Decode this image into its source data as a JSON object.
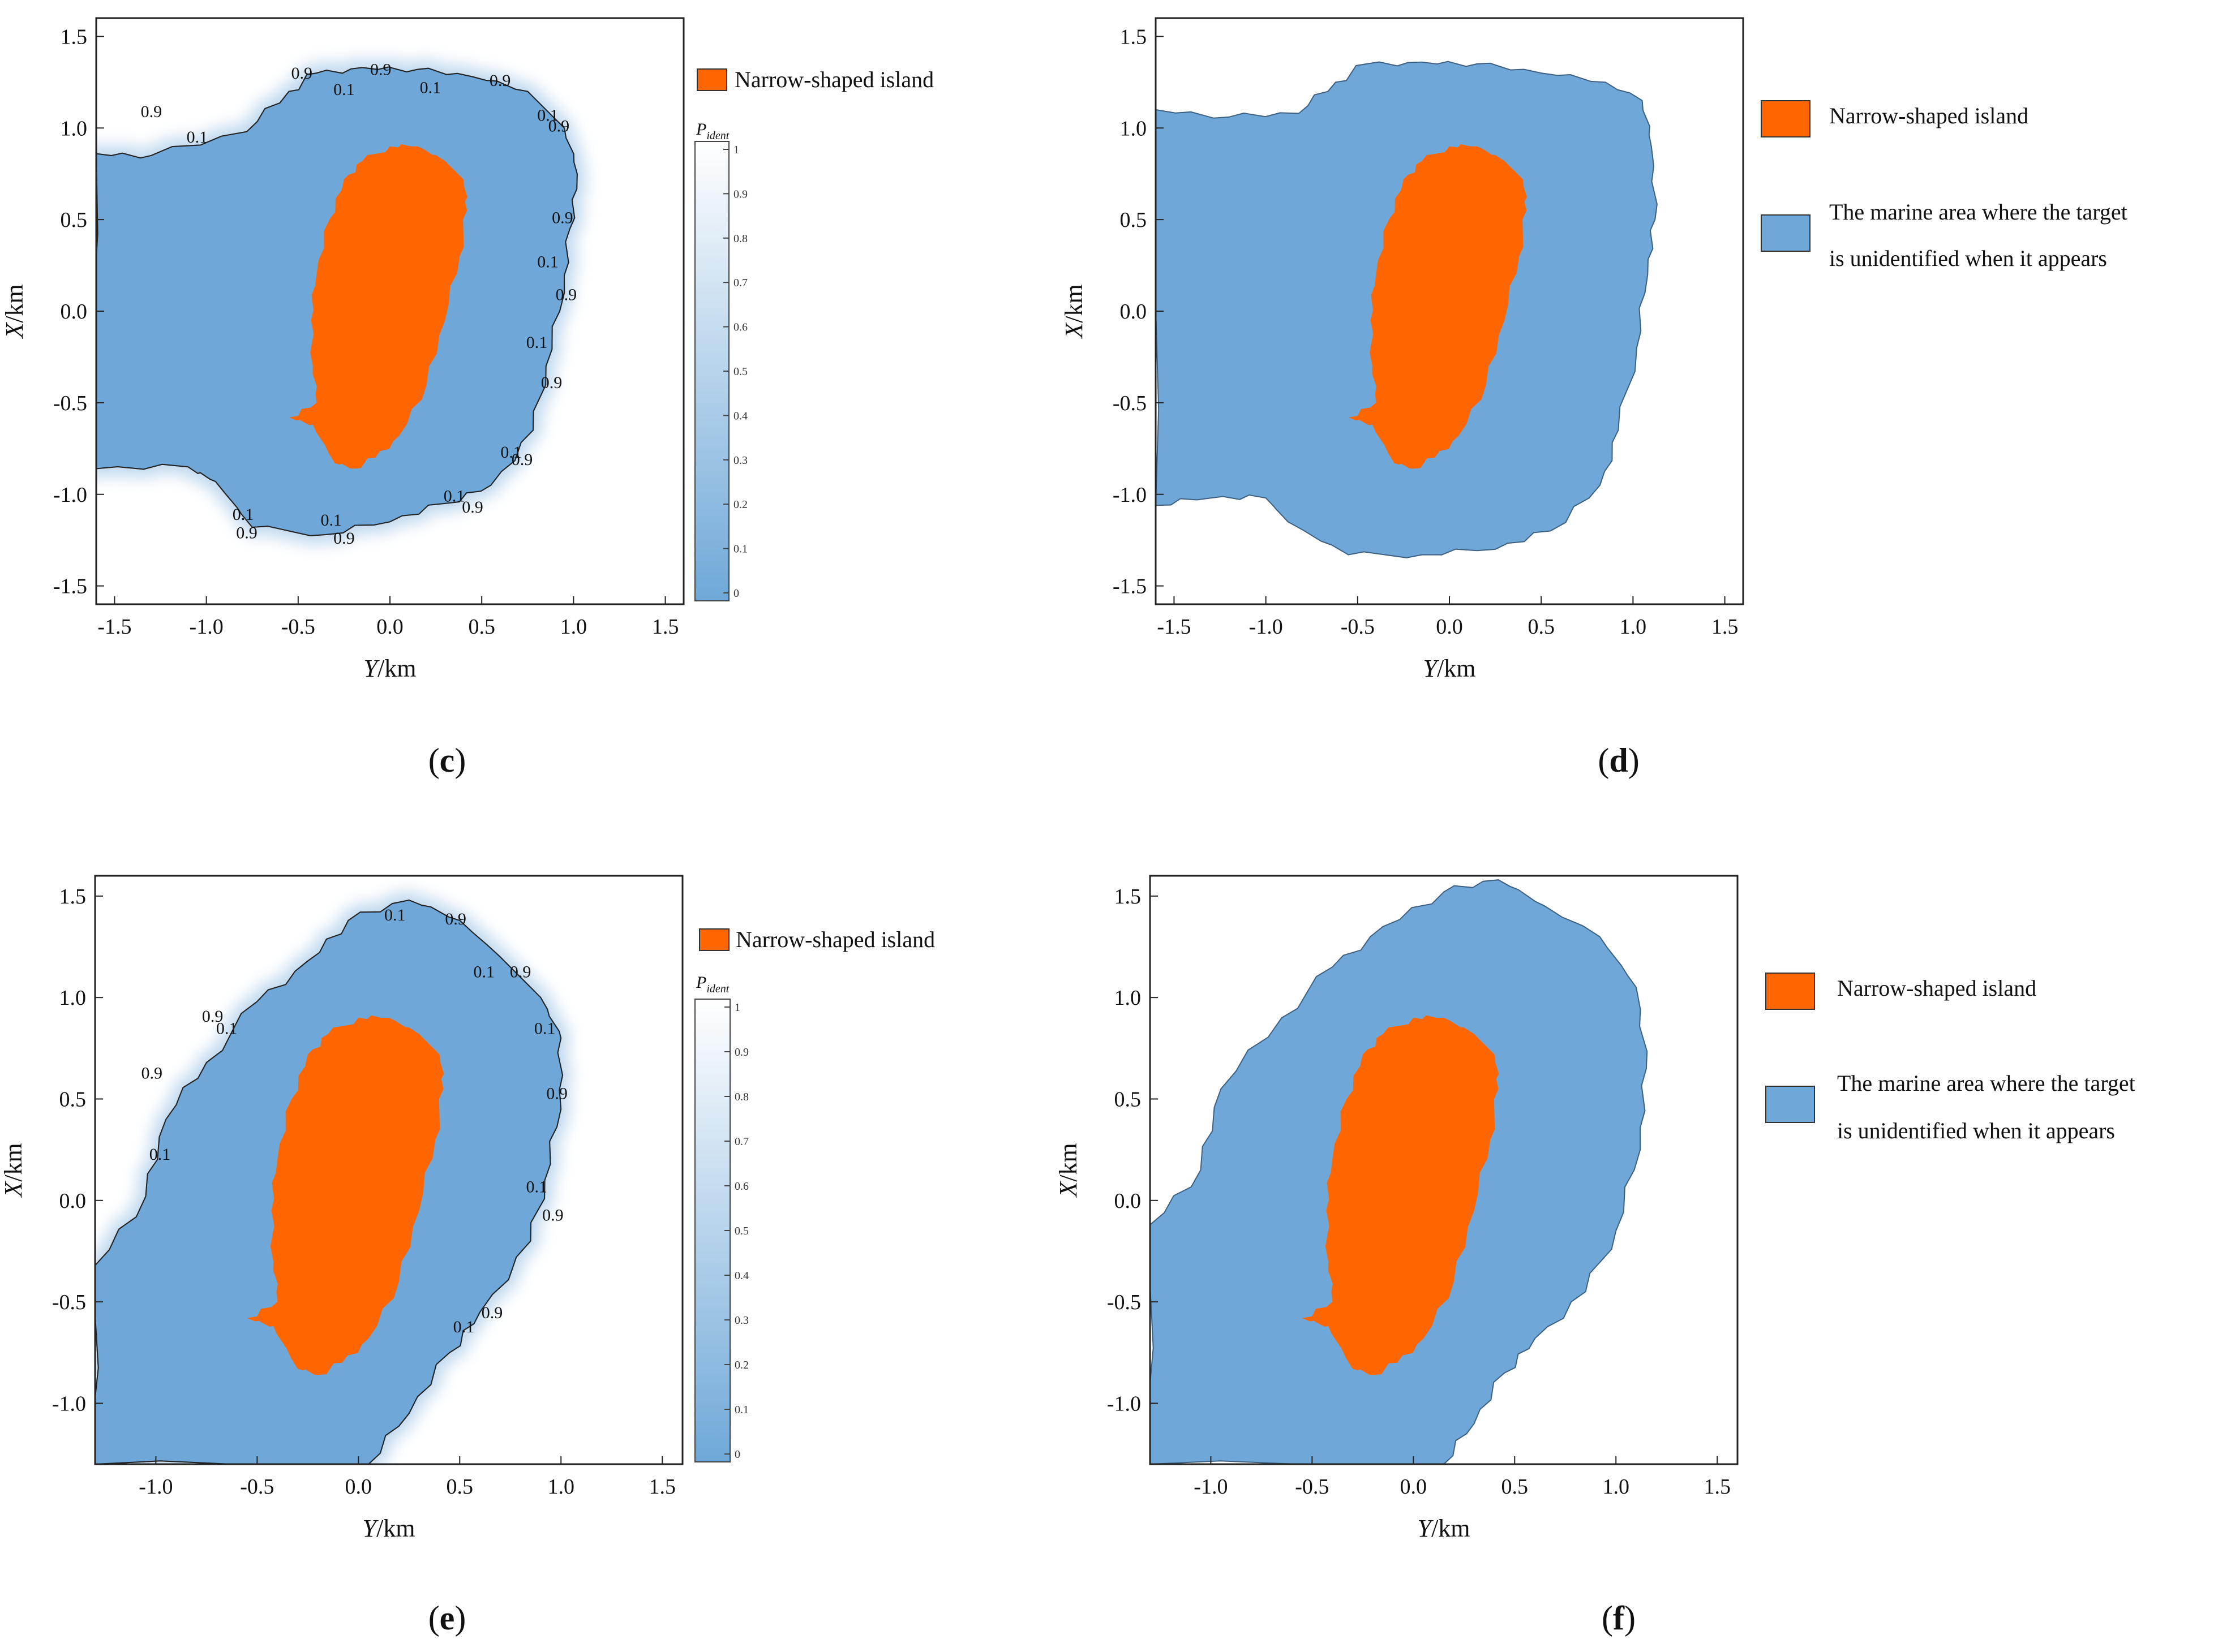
{
  "colors": {
    "island": "#FF6600",
    "marine": "#6FA8D8",
    "contour_line": "#222222",
    "frame": "#222222",
    "cbar_low": "#6FA8D8",
    "cbar_high": "#FFFFFF"
  },
  "chart_data": [
    {
      "id": "c",
      "type": "heatmap",
      "caption_letter": "c",
      "xlabel_italic": "Y",
      "xlabel_rest": "/km",
      "ylabel_italic": "X",
      "ylabel_rest": "/km",
      "xlim": [
        -1.6,
        1.6
      ],
      "ylim": [
        -1.6,
        1.6
      ],
      "xticks": [
        -1.5,
        -1.0,
        -0.5,
        0.0,
        0.5,
        1.0,
        1.5
      ],
      "xtick_labels": [
        "-1.5",
        "-1.0",
        "-0.5",
        "0.0",
        "0.5",
        "1.0",
        "1.5"
      ],
      "yticks": [
        -1.5,
        -1.0,
        -0.5,
        0.0,
        0.5,
        1.0,
        1.5
      ],
      "ytick_labels": [
        "-1.5",
        "-1.0",
        "-0.5",
        "0.0",
        "0.5",
        "1.0",
        "1.5"
      ],
      "legend": [
        "Narrow-shaped island"
      ],
      "colorbar": {
        "title": "P",
        "title_sub": "ident",
        "range": [
          0,
          1
        ],
        "ticks": [
          "1",
          "0.9",
          "0.8",
          "0.7",
          "0.6",
          "0.5",
          "0.4",
          "0.3",
          "0.2",
          "0.1",
          "0"
        ]
      },
      "contour_levels": [
        0.1,
        0.9
      ],
      "contour_labels": [
        "0.1",
        "0.9"
      ],
      "island_outline": [
        [
          -0.55,
          -0.58
        ],
        [
          -0.42,
          -0.62
        ],
        [
          -0.3,
          -0.83
        ],
        [
          -0.2,
          -0.86
        ],
        [
          -0.08,
          -0.8
        ],
        [
          0.05,
          -0.68
        ],
        [
          0.2,
          -0.4
        ],
        [
          0.3,
          -0.05
        ],
        [
          0.38,
          0.3
        ],
        [
          0.42,
          0.55
        ],
        [
          0.4,
          0.72
        ],
        [
          0.3,
          0.82
        ],
        [
          0.15,
          0.9
        ],
        [
          0.0,
          0.9
        ],
        [
          -0.15,
          0.82
        ],
        [
          -0.25,
          0.72
        ],
        [
          -0.33,
          0.5
        ],
        [
          -0.4,
          0.2
        ],
        [
          -0.43,
          -0.05
        ],
        [
          -0.42,
          -0.3
        ],
        [
          -0.4,
          -0.5
        ]
      ],
      "marine_outline": [
        [
          -1.6,
          0.86
        ],
        [
          -1.3,
          0.85
        ],
        [
          -0.78,
          0.98
        ],
        [
          -0.55,
          1.2
        ],
        [
          -0.4,
          1.3
        ],
        [
          -0.15,
          1.33
        ],
        [
          0.15,
          1.32
        ],
        [
          0.45,
          1.28
        ],
        [
          0.75,
          1.2
        ],
        [
          0.95,
          1.0
        ],
        [
          1.02,
          0.75
        ],
        [
          0.98,
          0.45
        ],
        [
          0.95,
          0.1
        ],
        [
          0.85,
          -0.3
        ],
        [
          0.78,
          -0.65
        ],
        [
          0.55,
          -0.95
        ],
        [
          0.3,
          -1.05
        ],
        [
          0.0,
          -1.15
        ],
        [
          -0.35,
          -1.22
        ],
        [
          -0.75,
          -1.18
        ],
        [
          -0.95,
          -0.93
        ],
        [
          -1.1,
          -0.85
        ],
        [
          -1.6,
          -0.86
        ]
      ],
      "label_positions": [
        [
          -1.3,
          1.06,
          "0.9"
        ],
        [
          -1.05,
          0.92,
          "0.1"
        ],
        [
          -0.48,
          1.27,
          "0.9"
        ],
        [
          -0.25,
          1.18,
          "0.1"
        ],
        [
          -0.05,
          1.29,
          "0.9"
        ],
        [
          0.22,
          1.19,
          "0.1"
        ],
        [
          0.6,
          1.23,
          "0.9"
        ],
        [
          0.86,
          1.04,
          "0.1"
        ],
        [
          0.92,
          0.98,
          "0.9"
        ],
        [
          0.94,
          0.48,
          "0.9"
        ],
        [
          0.86,
          0.24,
          "0.1"
        ],
        [
          0.96,
          0.06,
          "0.9"
        ],
        [
          0.8,
          -0.2,
          "0.1"
        ],
        [
          0.88,
          -0.42,
          "0.9"
        ],
        [
          0.66,
          -0.8,
          "0.1"
        ],
        [
          0.72,
          -0.84,
          "0.9"
        ],
        [
          0.35,
          -1.04,
          "0.1"
        ],
        [
          0.45,
          -1.1,
          "0.9"
        ],
        [
          -0.32,
          -1.17,
          "0.1"
        ],
        [
          -0.25,
          -1.27,
          "0.9"
        ],
        [
          -0.8,
          -1.14,
          "0.1"
        ],
        [
          -0.78,
          -1.24,
          "0.9"
        ]
      ]
    },
    {
      "id": "d",
      "type": "area",
      "caption_letter": "d",
      "xlabel_italic": "Y",
      "xlabel_rest": "/km",
      "ylabel_italic": "X",
      "ylabel_rest": "/km",
      "xlim": [
        -1.6,
        1.6
      ],
      "ylim": [
        -1.6,
        1.6
      ],
      "xticks": [
        -1.5,
        -1.0,
        -0.5,
        0.0,
        0.5,
        1.0,
        1.5
      ],
      "xtick_labels": [
        "-1.5",
        "-1.0",
        "-0.5",
        "0.0",
        "0.5",
        "1.0",
        "1.5"
      ],
      "yticks": [
        -1.5,
        -1.0,
        -0.5,
        0.0,
        0.5,
        1.0,
        1.5
      ],
      "ytick_labels": [
        "-1.5",
        "-1.0",
        "-0.5",
        "0.0",
        "0.5",
        "1.0",
        "1.5"
      ],
      "legend": [
        "Narrow-shaped island",
        "The marine area where the target",
        "is unidentified when it appears"
      ],
      "island_outline": [
        [
          -0.55,
          -0.58
        ],
        [
          -0.42,
          -0.62
        ],
        [
          -0.3,
          -0.83
        ],
        [
          -0.2,
          -0.86
        ],
        [
          -0.08,
          -0.8
        ],
        [
          0.05,
          -0.68
        ],
        [
          0.2,
          -0.4
        ],
        [
          0.3,
          -0.05
        ],
        [
          0.38,
          0.3
        ],
        [
          0.42,
          0.55
        ],
        [
          0.4,
          0.72
        ],
        [
          0.3,
          0.82
        ],
        [
          0.15,
          0.9
        ],
        [
          0.0,
          0.9
        ],
        [
          -0.15,
          0.82
        ],
        [
          -0.25,
          0.72
        ],
        [
          -0.33,
          0.5
        ],
        [
          -0.4,
          0.2
        ],
        [
          -0.43,
          -0.05
        ],
        [
          -0.42,
          -0.3
        ],
        [
          -0.4,
          -0.5
        ]
      ],
      "marine_outline": [
        [
          -1.6,
          1.1
        ],
        [
          -1.2,
          1.06
        ],
        [
          -0.82,
          1.08
        ],
        [
          -0.62,
          1.25
        ],
        [
          -0.45,
          1.35
        ],
        [
          -0.15,
          1.36
        ],
        [
          0.15,
          1.35
        ],
        [
          0.5,
          1.3
        ],
        [
          0.85,
          1.25
        ],
        [
          1.05,
          1.15
        ],
        [
          1.1,
          0.9
        ],
        [
          1.12,
          0.5
        ],
        [
          1.08,
          0.2
        ],
        [
          1.02,
          -0.2
        ],
        [
          0.92,
          -0.65
        ],
        [
          0.82,
          -0.95
        ],
        [
          0.55,
          -1.2
        ],
        [
          0.25,
          -1.3
        ],
        [
          -0.15,
          -1.33
        ],
        [
          -0.55,
          -1.33
        ],
        [
          -0.88,
          -1.15
        ],
        [
          -1.0,
          -1.02
        ],
        [
          -1.3,
          -1.02
        ],
        [
          -1.6,
          -1.06
        ]
      ]
    },
    {
      "id": "e",
      "type": "heatmap",
      "caption_letter": "e",
      "xlabel_italic": "Y",
      "xlabel_rest": "/km",
      "ylabel_italic": "X",
      "ylabel_rest": "/km",
      "xlim": [
        -1.3,
        1.6
      ],
      "ylim": [
        -1.3,
        1.6
      ],
      "xticks": [
        -1.0,
        -0.5,
        0.0,
        0.5,
        1.0,
        1.5
      ],
      "xtick_labels": [
        "-1.0",
        "-0.5",
        "0.0",
        "0.5",
        "1.0",
        "1.5"
      ],
      "yticks": [
        -1.0,
        -0.5,
        0.0,
        0.5,
        1.0,
        1.5
      ],
      "ytick_labels": [
        "-1.0",
        "-0.5",
        "0.0",
        "0.5",
        "1.0",
        "1.5"
      ],
      "legend": [
        "Narrow-shaped island"
      ],
      "colorbar": {
        "title": "P",
        "title_sub": "ident",
        "range": [
          0,
          1
        ],
        "ticks": [
          "1",
          "0.9",
          "0.8",
          "0.7",
          "0.6",
          "0.5",
          "0.4",
          "0.3",
          "0.2",
          "0.1",
          "0"
        ]
      },
      "contour_levels": [
        0.1,
        0.9
      ],
      "contour_labels": [
        "0.1",
        "0.9"
      ],
      "island_outline": [
        [
          -0.55,
          -0.58
        ],
        [
          -0.42,
          -0.62
        ],
        [
          -0.3,
          -0.83
        ],
        [
          -0.2,
          -0.86
        ],
        [
          -0.08,
          -0.8
        ],
        [
          0.05,
          -0.68
        ],
        [
          0.2,
          -0.4
        ],
        [
          0.3,
          -0.05
        ],
        [
          0.38,
          0.3
        ],
        [
          0.42,
          0.55
        ],
        [
          0.4,
          0.72
        ],
        [
          0.3,
          0.82
        ],
        [
          0.15,
          0.9
        ],
        [
          0.0,
          0.9
        ],
        [
          -0.15,
          0.82
        ],
        [
          -0.25,
          0.72
        ],
        [
          -0.33,
          0.5
        ],
        [
          -0.4,
          0.2
        ],
        [
          -0.43,
          -0.05
        ],
        [
          -0.42,
          -0.3
        ],
        [
          -0.4,
          -0.5
        ]
      ],
      "marine_outline": [
        [
          -1.3,
          -0.32
        ],
        [
          -1.05,
          0.02
        ],
        [
          -0.95,
          0.4
        ],
        [
          -0.75,
          0.68
        ],
        [
          -0.5,
          0.98
        ],
        [
          -0.25,
          1.18
        ],
        [
          -0.05,
          1.38
        ],
        [
          0.25,
          1.48
        ],
        [
          0.5,
          1.38
        ],
        [
          0.7,
          1.2
        ],
        [
          0.9,
          1.0
        ],
        [
          1.0,
          0.8
        ],
        [
          1.0,
          0.45
        ],
        [
          0.92,
          0.1
        ],
        [
          0.85,
          -0.2
        ],
        [
          0.6,
          -0.55
        ],
        [
          0.45,
          -0.75
        ],
        [
          0.25,
          -1.05
        ],
        [
          0.05,
          -1.3
        ],
        [
          -1.3,
          -1.3
        ]
      ],
      "label_positions": [
        [
          0.18,
          1.38,
          "0.1"
        ],
        [
          0.48,
          1.36,
          "0.9"
        ],
        [
          0.62,
          1.1,
          "0.1"
        ],
        [
          0.8,
          1.1,
          "0.9"
        ],
        [
          0.92,
          0.82,
          "0.1"
        ],
        [
          0.98,
          0.5,
          "0.9"
        ],
        [
          0.88,
          0.04,
          "0.1"
        ],
        [
          0.96,
          -0.1,
          "0.9"
        ],
        [
          0.52,
          -0.65,
          "0.1"
        ],
        [
          0.66,
          -0.58,
          "0.9"
        ],
        [
          -0.72,
          0.88,
          "0.9"
        ],
        [
          -0.65,
          0.82,
          "0.1"
        ],
        [
          -1.02,
          0.6,
          "0.9"
        ],
        [
          -0.98,
          0.2,
          "0.1"
        ]
      ]
    },
    {
      "id": "f",
      "type": "area",
      "caption_letter": "f",
      "xlabel_italic": "Y",
      "xlabel_rest": "/km",
      "ylabel_italic": "X",
      "ylabel_rest": "/km",
      "xlim": [
        -1.3,
        1.6
      ],
      "ylim": [
        -1.3,
        1.6
      ],
      "xticks": [
        -1.0,
        -0.5,
        0.0,
        0.5,
        1.0,
        1.5
      ],
      "xtick_labels": [
        "-1.0",
        "-0.5",
        "0.0",
        "0.5",
        "1.0",
        "1.5"
      ],
      "yticks": [
        -1.0,
        -0.5,
        0.0,
        0.5,
        1.0,
        1.5
      ],
      "ytick_labels": [
        "-1.0",
        "-0.5",
        "0.0",
        "0.5",
        "1.0",
        "1.5"
      ],
      "legend": [
        "Narrow-shaped island",
        "The marine area where the target",
        "is unidentified when it appears"
      ],
      "island_outline": [
        [
          -0.55,
          -0.58
        ],
        [
          -0.42,
          -0.62
        ],
        [
          -0.3,
          -0.83
        ],
        [
          -0.2,
          -0.86
        ],
        [
          -0.08,
          -0.8
        ],
        [
          0.05,
          -0.68
        ],
        [
          0.2,
          -0.4
        ],
        [
          0.3,
          -0.05
        ],
        [
          0.38,
          0.3
        ],
        [
          0.42,
          0.55
        ],
        [
          0.4,
          0.72
        ],
        [
          0.3,
          0.82
        ],
        [
          0.15,
          0.9
        ],
        [
          0.0,
          0.9
        ],
        [
          -0.15,
          0.82
        ],
        [
          -0.25,
          0.72
        ],
        [
          -0.33,
          0.5
        ],
        [
          -0.4,
          0.2
        ],
        [
          -0.43,
          -0.05
        ],
        [
          -0.42,
          -0.3
        ],
        [
          -0.4,
          -0.5
        ]
      ],
      "marine_outline": [
        [
          -1.3,
          -0.12
        ],
        [
          -1.05,
          0.15
        ],
        [
          -0.95,
          0.55
        ],
        [
          -0.65,
          0.9
        ],
        [
          -0.4,
          1.15
        ],
        [
          -0.15,
          1.35
        ],
        [
          0.15,
          1.52
        ],
        [
          0.42,
          1.58
        ],
        [
          0.65,
          1.45
        ],
        [
          0.92,
          1.3
        ],
        [
          1.1,
          1.05
        ],
        [
          1.15,
          0.65
        ],
        [
          1.12,
          0.25
        ],
        [
          1.0,
          -0.15
        ],
        [
          0.85,
          -0.45
        ],
        [
          0.6,
          -0.68
        ],
        [
          0.45,
          -0.85
        ],
        [
          0.3,
          -1.1
        ],
        [
          0.15,
          -1.3
        ],
        [
          -1.3,
          -1.3
        ]
      ]
    }
  ]
}
